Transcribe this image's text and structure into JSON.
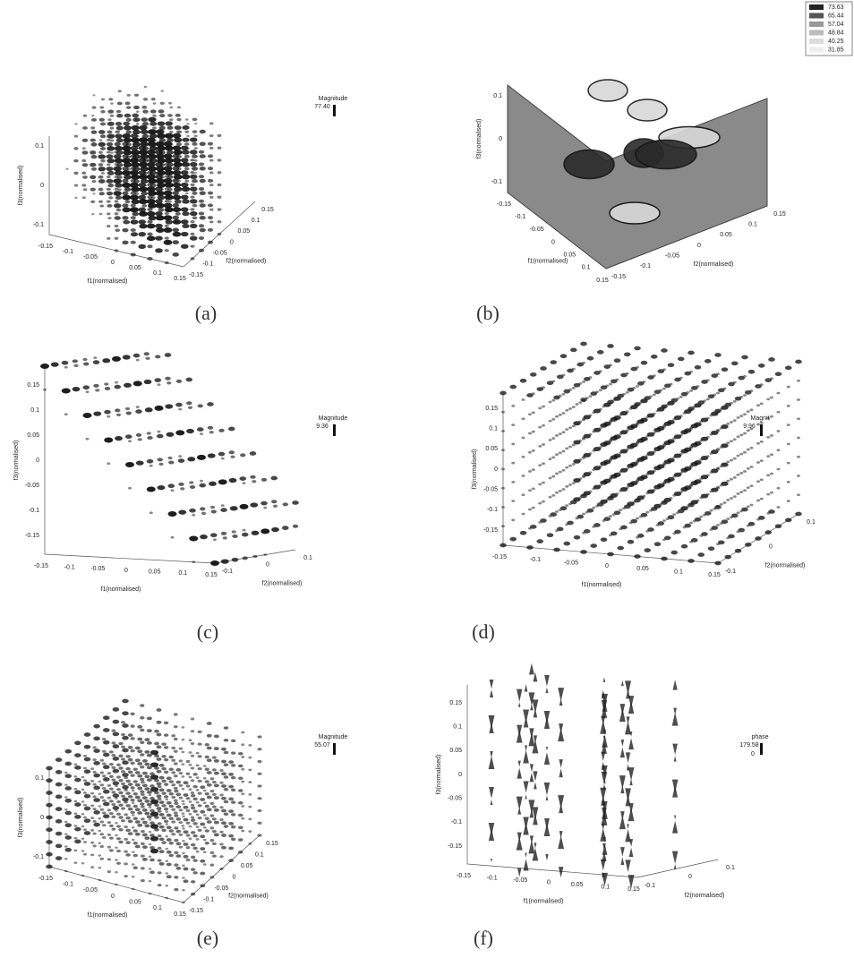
{
  "panels": [
    {
      "label": "(a)",
      "x_label": "f1(normalised)",
      "y_label": "f2(normalised)",
      "z_label": "f3(normalised)",
      "x_ticks": [
        "-0.15",
        "-0.1",
        "-0.05",
        "0",
        "0.05",
        "0.1",
        "0.15"
      ],
      "y_ticks": [
        "-0.15",
        "-0.1",
        "-0.05",
        "0",
        "0.05",
        "0.1",
        "0.15"
      ],
      "z_ticks": [
        "0.1",
        "0",
        "-0.1"
      ],
      "colorbar": {
        "title": "Magnitude",
        "max": "77.40"
      }
    },
    {
      "label": "(b)",
      "x_label": "f1(normalised)",
      "y_label": "f2(normalised)",
      "z_label": "f3(normalised)",
      "x_ticks": [
        "-0.15",
        "-0.1",
        "-0.05",
        "0",
        "0.05",
        "0.1",
        "0.15"
      ],
      "y_ticks": [
        "-0.15",
        "-0.1",
        "-0.05",
        "0",
        "0.05",
        "0.1",
        "0.15"
      ],
      "z_ticks": [
        "0.1",
        "0",
        "-0.1"
      ],
      "legend": [
        "73.63",
        "65.44",
        "57.04",
        "48.84",
        "40.25",
        "31.85"
      ]
    },
    {
      "label": "(c)",
      "x_label": "f1(normalised)",
      "y_label": "f2(normalised)",
      "z_label": "f3(normalised)",
      "x_ticks": [
        "-0.15",
        "-0.1",
        "-0.05",
        "0",
        "0.05",
        "0.1",
        "0.15"
      ],
      "y_ticks": [
        "-0.1",
        "0",
        "0.1"
      ],
      "z_ticks": [
        "0.15",
        "0.1",
        "0.05",
        "0",
        "-0.05",
        "-0.1",
        "-0.15"
      ],
      "colorbar": {
        "title": "Magnitude",
        "max": "9.36"
      }
    },
    {
      "label": "(d)",
      "x_label": "f1(normalised)",
      "y_label": "f2(normalised)",
      "z_label": "f3(normalised)",
      "x_ticks": [
        "-0.15",
        "-0.1",
        "-0.05",
        "0",
        "0.05",
        "0.1",
        "0.15"
      ],
      "y_ticks": [
        "-0.1",
        "0",
        "0.1"
      ],
      "z_ticks": [
        "0.15",
        "0.1",
        "0.05",
        "0",
        "-0.05",
        "-0.1",
        "-0.15"
      ],
      "colorbar": {
        "title": "Magnit",
        "max": "9.96"
      }
    },
    {
      "label": "(e)",
      "x_label": "f1(normalised)",
      "y_label": "f2(normalised)",
      "z_label": "f3(normalised)",
      "x_ticks": [
        "-0.15",
        "-0.1",
        "-0.05",
        "0",
        "0.05",
        "0.1",
        "0.15"
      ],
      "y_ticks": [
        "-0.15",
        "-0.1",
        "-0.05",
        "0",
        "0.05",
        "0.1",
        "0.15"
      ],
      "z_ticks": [
        "0.1",
        "0",
        "-0.1"
      ],
      "colorbar": {
        "title": "Magnitude",
        "max": "55.07"
      }
    },
    {
      "label": "(f)",
      "x_label": "f1(normalised)",
      "y_label": "f2(normalised)",
      "z_label": "f3(normalised)",
      "x_ticks": [
        "-0.15",
        "-0.1",
        "-0.05",
        "0",
        "0.05",
        "0.1",
        "0.15"
      ],
      "y_ticks": [
        "-0.1",
        "0",
        "0.1"
      ],
      "z_ticks": [
        "0.15",
        "0.1",
        "0.05",
        "0",
        "-0.05",
        "-0.1",
        "-0.15"
      ],
      "colorbar": {
        "title": "phase",
        "max": "179.58",
        "min": "0"
      }
    }
  ]
}
